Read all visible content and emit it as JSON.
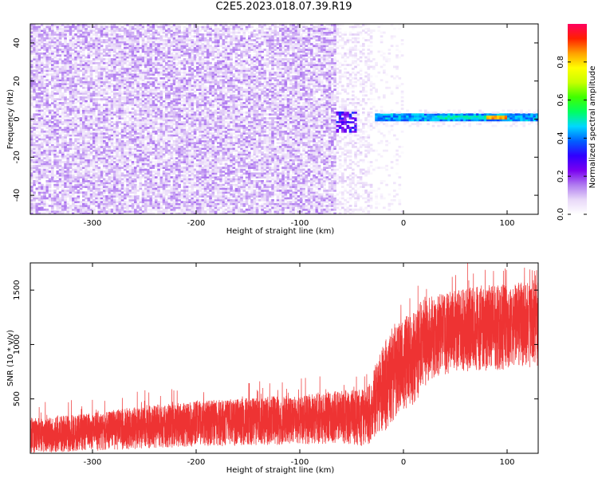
{
  "page": {
    "title": "C2E5.2023.018.07.39.R19"
  },
  "chart_data": [
    {
      "type": "heatmap",
      "title": "C2E5.2023.018.07.39.R19",
      "xlabel": "Height of straight line (km)",
      "ylabel": "Frequency (Hz)",
      "colorbar_label": "Normalized spectral amplitude",
      "xlim": [
        -360,
        130
      ],
      "ylim": [
        -50,
        50
      ],
      "clim": [
        0,
        1
      ],
      "x_ticks": [
        -300,
        -200,
        -100,
        0,
        100
      ],
      "x_tick_labels": [
        "-300",
        "-200",
        "-100",
        "0",
        "100"
      ],
      "y_ticks": [
        -40,
        -20,
        0,
        20,
        40
      ],
      "y_tick_labels": [
        "-40",
        "-20",
        "0",
        "20",
        "40"
      ],
      "colorbar_ticks": [
        0,
        0.2,
        0.4,
        0.6,
        0.8
      ],
      "colorbar_tick_labels": [
        "0.0",
        "0.2",
        "0.4",
        "0.6",
        "0.8"
      ],
      "colormap": [
        "#ffffff",
        "#e8d8f8",
        "#b07cf0",
        "#7a00f0",
        "#3000ff",
        "#0060ff",
        "#00d8ff",
        "#00ff60",
        "#40ff00",
        "#c8ff00",
        "#ffff00",
        "#ffa000",
        "#ff2000",
        "#ff0060"
      ],
      "regions": [
        {
          "x_range": [
            -360,
            -65
          ],
          "freq_range": [
            -50,
            50
          ],
          "level": "noise ~0.02-0.15"
        },
        {
          "x_range": [
            -65,
            -30
          ],
          "freq_range": [
            -50,
            50
          ],
          "level": "sparse noise ~0.02-0.08"
        },
        {
          "x_range": [
            -65,
            -45
          ],
          "freq_range": [
            -8,
            4
          ],
          "level": "blobs ~0.2-0.35"
        },
        {
          "x_range": [
            -30,
            130
          ],
          "freq_range": [
            -2,
            3
          ],
          "level": "signal band ~0.35-0.5"
        },
        {
          "x_range": [
            80,
            100
          ],
          "freq_range": [
            0,
            2
          ],
          "level": "peak ~0.85"
        }
      ]
    },
    {
      "type": "line",
      "xlabel": "Height of straight line (km)",
      "ylabel": "SNR (10 * v/v)",
      "xlim": [
        -360,
        130
      ],
      "ylim": [
        0,
        1750
      ],
      "x_ticks": [
        -300,
        -200,
        -100,
        0,
        100
      ],
      "x_tick_labels": [
        "-300",
        "-200",
        "-100",
        "0",
        "100"
      ],
      "y_ticks": [
        500,
        1000,
        1500
      ],
      "y_tick_labels": [
        "500",
        "1000",
        "1500"
      ],
      "color": "#ee3333",
      "trend": {
        "x": [
          -360,
          -300,
          -250,
          -200,
          -150,
          -100,
          -60,
          -35,
          -20,
          -10,
          0,
          10,
          20,
          30,
          50,
          80,
          100,
          130
        ],
        "low": [
          0,
          20,
          40,
          60,
          70,
          80,
          90,
          60,
          180,
          280,
          380,
          450,
          600,
          700,
          750,
          760,
          770,
          800
        ],
        "high": [
          320,
          370,
          440,
          480,
          510,
          540,
          580,
          600,
          1000,
          1150,
          1250,
          1300,
          1450,
          1450,
          1500,
          1550,
          1550,
          1600
        ]
      },
      "peaks": [
        {
          "x": 62,
          "y": 1750
        },
        {
          "x": 122,
          "y": 1690
        },
        {
          "x": 14,
          "y": 1540
        }
      ]
    }
  ]
}
